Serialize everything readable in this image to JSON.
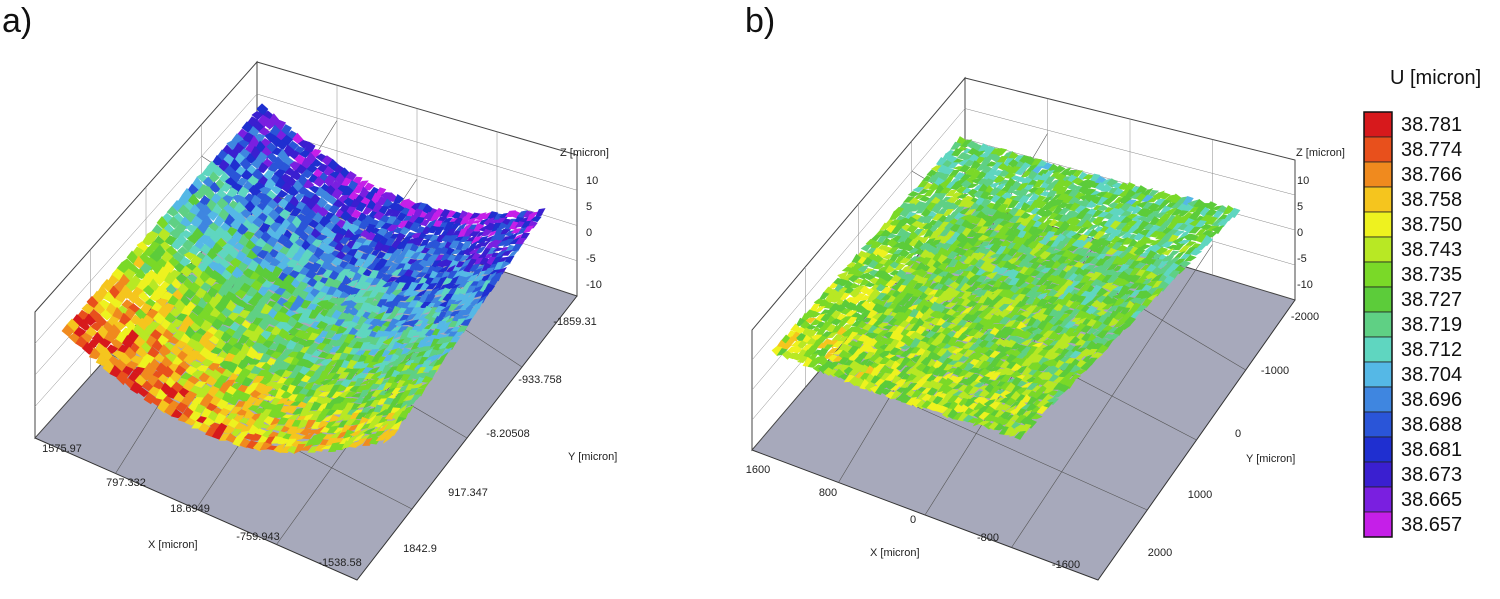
{
  "chart_data": [
    {
      "type": "heatmap",
      "panel": "a)",
      "xlabel": "X [micron]",
      "ylabel": "Y [micron]",
      "zlabel": "Z [micron]",
      "x_ticks": [
        "1575.97",
        "797.332",
        "18.6949",
        "-759.943",
        "-1538.58"
      ],
      "y_ticks": [
        "-1859.31",
        "-933.758",
        "-8.20508",
        "917.347",
        "1842.9"
      ],
      "z_ticks": [
        "10",
        "5",
        "0",
        "-5",
        "-10"
      ],
      "colorbar_values": [
        38.781,
        38.657
      ],
      "surface": "curved"
    },
    {
      "type": "heatmap",
      "panel": "b)",
      "xlabel": "X [micron]",
      "ylabel": "Y [micron]",
      "zlabel": "Z [micron]",
      "x_ticks": [
        "1600",
        "800",
        "0",
        "-800",
        "-1600"
      ],
      "y_ticks": [
        "-2000",
        "-1000",
        "0",
        "1000",
        "2000"
      ],
      "z_ticks": [
        "10",
        "5",
        "0",
        "-5",
        "-10"
      ],
      "colorbar_values": [
        38.745,
        38.738
      ],
      "surface": "flat"
    }
  ],
  "colorbar": {
    "title": "U [micron]",
    "labels": [
      "38.781",
      "38.774",
      "38.766",
      "38.758",
      "38.750",
      "38.743",
      "38.735",
      "38.727",
      "38.719",
      "38.712",
      "38.704",
      "38.696",
      "38.688",
      "38.681",
      "38.673",
      "38.665",
      "38.657"
    ],
    "colors": [
      "#d7191c",
      "#e8501c",
      "#f08a1e",
      "#f5c51e",
      "#eef21f",
      "#b8e824",
      "#7ad928",
      "#5ccc3a",
      "#5fd084",
      "#5fd6c0",
      "#55b8e6",
      "#3f86e0",
      "#2a55d8",
      "#1f2fd0",
      "#3a1fd0",
      "#7a1fe0",
      "#c51fe8"
    ]
  }
}
